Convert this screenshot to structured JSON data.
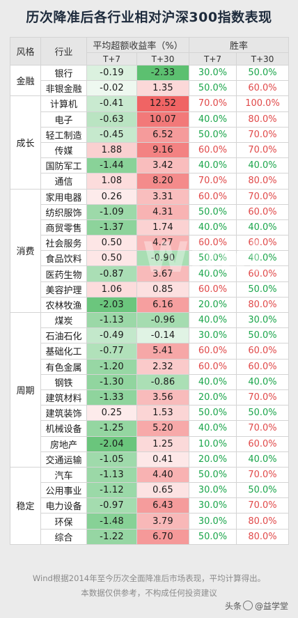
{
  "title": "历次降准后各行业相对沪深300指数表现",
  "headers": {
    "style": "风格",
    "industry": "行业",
    "excess": "平均超额收益率（%）",
    "winrate": "胜率",
    "t7": "T+7",
    "t30": "T+30"
  },
  "colors": {
    "pos_max": "#f06464",
    "neg_max": "#5cc070",
    "winrate_green": "#1aa54a",
    "winrate_red": "#e04848"
  },
  "groups": [
    {
      "name": "金融",
      "rows": [
        {
          "industry": "银行",
          "t7": "-0.19",
          "t30": "-2.33",
          "w7": "30.0%",
          "w30": "50.0%"
        },
        {
          "industry": "非银金融",
          "t7": "-0.02",
          "t30": "1.35",
          "w7": "50.0%",
          "w30": "60.0%"
        }
      ]
    },
    {
      "name": "成长",
      "rows": [
        {
          "industry": "计算机",
          "t7": "-0.41",
          "t30": "12.52",
          "w7": "70.0%",
          "w30": "100.0%"
        },
        {
          "industry": "电子",
          "t7": "-0.63",
          "t30": "10.07",
          "w7": "40.0%",
          "w30": "80.0%"
        },
        {
          "industry": "轻工制造",
          "t7": "-0.45",
          "t30": "6.52",
          "w7": "50.0%",
          "w30": "70.0%"
        },
        {
          "industry": "传媒",
          "t7": "1.88",
          "t30": "9.16",
          "w7": "60.0%",
          "w30": "70.0%"
        },
        {
          "industry": "国防军工",
          "t7": "-1.44",
          "t30": "3.42",
          "w7": "40.0%",
          "w30": "40.0%"
        },
        {
          "industry": "通信",
          "t7": "1.08",
          "t30": "8.20",
          "w7": "70.0%",
          "w30": "80.0%"
        }
      ]
    },
    {
      "name": "消费",
      "rows": [
        {
          "industry": "家用电器",
          "t7": "0.26",
          "t30": "3.31",
          "w7": "60.0%",
          "w30": "70.0%"
        },
        {
          "industry": "纺织服饰",
          "t7": "-1.09",
          "t30": "4.31",
          "w7": "50.0%",
          "w30": "60.0%"
        },
        {
          "industry": "商贸零售",
          "t7": "-1.37",
          "t30": "1.74",
          "w7": "40.0%",
          "w30": "40.0%"
        },
        {
          "industry": "社会服务",
          "t7": "0.50",
          "t30": "4.27",
          "w7": "60.0%",
          "w30": "60.0%"
        },
        {
          "industry": "食品饮料",
          "t7": "0.50",
          "t30": "-0.90",
          "w7": "50.0%",
          "w30": "40.0%"
        },
        {
          "industry": "医药生物",
          "t7": "-0.87",
          "t30": "3.67",
          "w7": "40.0%",
          "w30": "60.0%"
        },
        {
          "industry": "美容护理",
          "t7": "1.06",
          "t30": "0.85",
          "w7": "60.0%",
          "w30": "50.0%"
        },
        {
          "industry": "农林牧渔",
          "t7": "-2.03",
          "t30": "6.16",
          "w7": "20.0%",
          "w30": "80.0%"
        }
      ]
    },
    {
      "name": "周期",
      "rows": [
        {
          "industry": "煤炭",
          "t7": "-1.13",
          "t30": "-0.96",
          "w7": "40.0%",
          "w30": "30.0%"
        },
        {
          "industry": "石油石化",
          "t7": "-0.49",
          "t30": "-0.14",
          "w7": "30.0%",
          "w30": "50.0%"
        },
        {
          "industry": "基础化工",
          "t7": "-0.77",
          "t30": "5.41",
          "w7": "60.0%",
          "w30": "60.0%"
        },
        {
          "industry": "有色金属",
          "t7": "-1.20",
          "t30": "2.32",
          "w7": "60.0%",
          "w30": "60.0%"
        },
        {
          "industry": "钢铁",
          "t7": "-1.30",
          "t30": "-0.86",
          "w7": "40.0%",
          "w30": "40.0%"
        },
        {
          "industry": "建筑材料",
          "t7": "-1.33",
          "t30": "3.56",
          "w7": "20.0%",
          "w30": "70.0%"
        },
        {
          "industry": "建筑装饰",
          "t7": "0.25",
          "t30": "1.53",
          "w7": "50.0%",
          "w30": "50.0%"
        },
        {
          "industry": "机械设备",
          "t7": "-1.25",
          "t30": "5.20",
          "w7": "40.0%",
          "w30": "70.0%"
        },
        {
          "industry": "房地产",
          "t7": "-2.04",
          "t30": "1.25",
          "w7": "10.0%",
          "w30": "60.0%"
        },
        {
          "industry": "交通运输",
          "t7": "-1.05",
          "t30": "0.41",
          "w7": "20.0%",
          "w30": "40.0%"
        }
      ]
    },
    {
      "name": "稳定",
      "rows": [
        {
          "industry": "汽车",
          "t7": "-1.13",
          "t30": "4.40",
          "w7": "50.0%",
          "w30": "70.0%"
        },
        {
          "industry": "公用事业",
          "t7": "-1.12",
          "t30": "0.65",
          "w7": "30.0%",
          "w30": "50.0%"
        },
        {
          "industry": "电力设备",
          "t7": "-0.97",
          "t30": "6.43",
          "w7": "30.0%",
          "w30": "70.0%"
        },
        {
          "industry": "环保",
          "t7": "-1.48",
          "t30": "3.79",
          "w7": "30.0%",
          "w30": "80.0%"
        },
        {
          "industry": "综合",
          "t7": "-1.22",
          "t30": "6.70",
          "w7": "50.0%",
          "w30": "80.0%"
        }
      ]
    }
  ],
  "footer": {
    "line1": "Wind根据2014年至今历次全面降准后市场表现，平均计算得出。",
    "line2": "本数据仅供参考，不构成任何投资建议"
  },
  "watermark": {
    "prefix": "头条",
    "account": "@益学堂"
  },
  "background_watermark": "Wind"
}
